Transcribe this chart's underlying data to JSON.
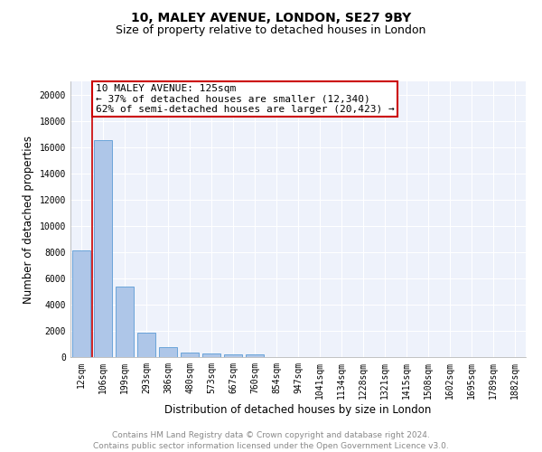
{
  "title": "10, MALEY AVENUE, LONDON, SE27 9BY",
  "subtitle": "Size of property relative to detached houses in London",
  "xlabel": "Distribution of detached houses by size in London",
  "ylabel": "Number of detached properties",
  "categories": [
    "12sqm",
    "106sqm",
    "199sqm",
    "293sqm",
    "386sqm",
    "480sqm",
    "573sqm",
    "667sqm",
    "760sqm",
    "854sqm",
    "947sqm",
    "1041sqm",
    "1134sqm",
    "1228sqm",
    "1321sqm",
    "1415sqm",
    "1508sqm",
    "1602sqm",
    "1695sqm",
    "1789sqm",
    "1882sqm"
  ],
  "values": [
    8100,
    16500,
    5400,
    1850,
    750,
    330,
    270,
    210,
    200,
    0,
    0,
    0,
    0,
    0,
    0,
    0,
    0,
    0,
    0,
    0,
    0
  ],
  "bar_color": "#aec6e8",
  "bar_edge_color": "#5b9bd5",
  "vline_x": 0.5,
  "vline_color": "#cc0000",
  "annotation_box_color": "#cc0000",
  "annotation_lines": [
    "10 MALEY AVENUE: 125sqm",
    "← 37% of detached houses are smaller (12,340)",
    "62% of semi-detached houses are larger (20,423) →"
  ],
  "ylim": [
    0,
    21000
  ],
  "yticks": [
    0,
    2000,
    4000,
    6000,
    8000,
    10000,
    12000,
    14000,
    16000,
    18000,
    20000
  ],
  "footer_line1": "Contains HM Land Registry data © Crown copyright and database right 2024.",
  "footer_line2": "Contains public sector information licensed under the Open Government Licence v3.0.",
  "bg_color": "#eef2fb",
  "grid_color": "#ffffff",
  "title_fontsize": 10,
  "subtitle_fontsize": 9,
  "axis_label_fontsize": 8.5,
  "tick_fontsize": 7,
  "footer_fontsize": 6.5,
  "annotation_fontsize": 8
}
